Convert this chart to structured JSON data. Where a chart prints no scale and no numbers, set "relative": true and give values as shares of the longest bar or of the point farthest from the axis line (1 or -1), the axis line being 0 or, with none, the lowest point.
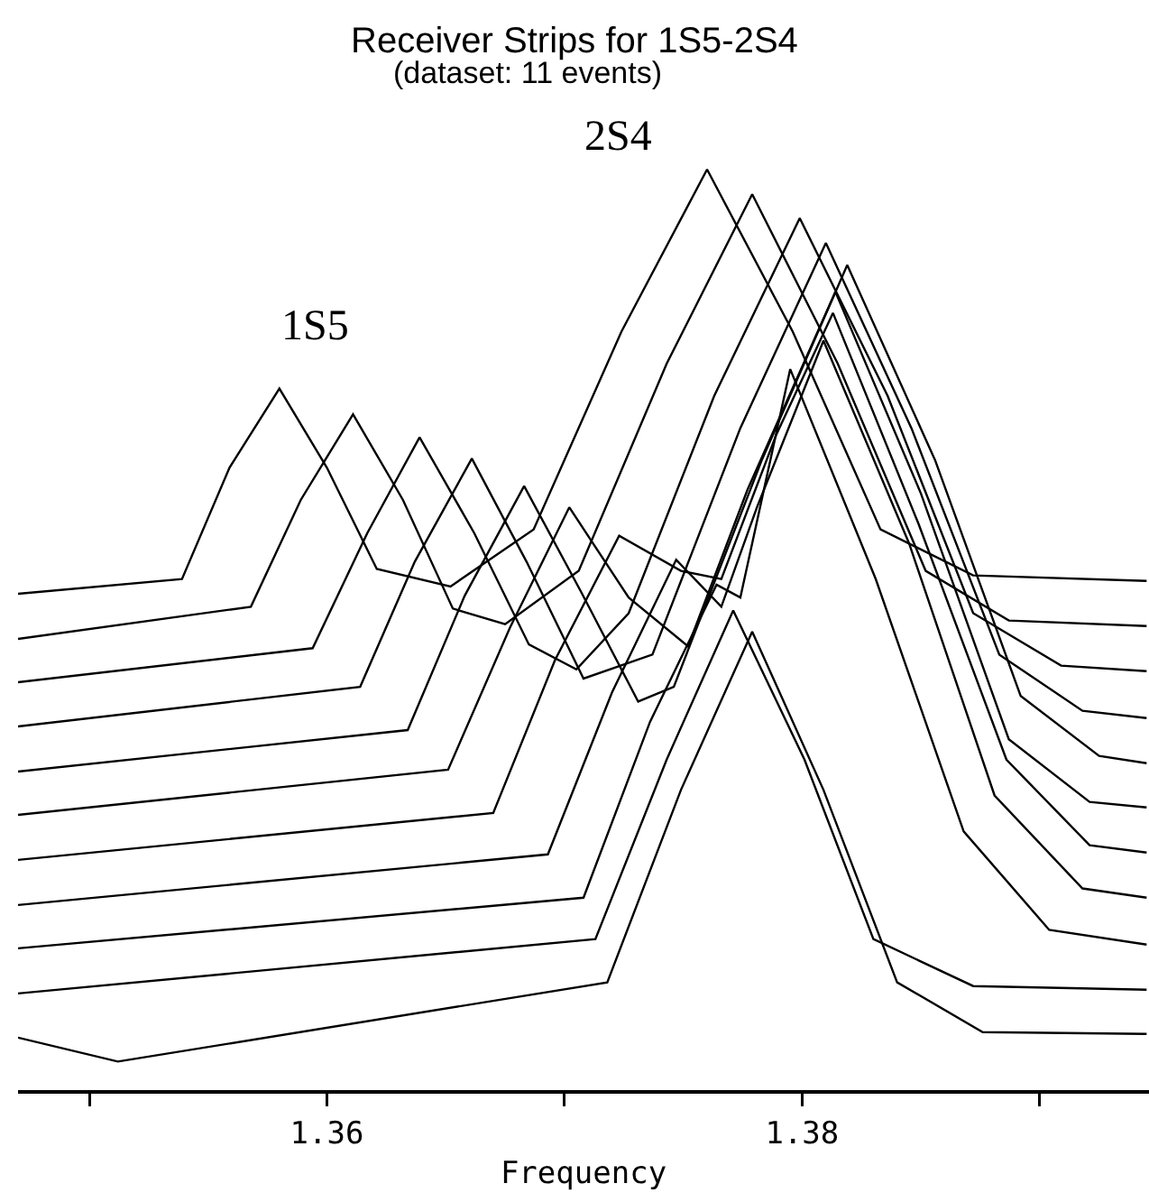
{
  "chart_data": {
    "type": "line",
    "title": "Receiver Strips for 1S5-2S4",
    "subtitle": "(dataset: 11 events)",
    "xlabel": "Frequency",
    "relative": true,
    "tick_labels": "x",
    "grid": false,
    "marker": "none",
    "line_style": "solid",
    "xlim": [
      1.347,
      1.3946
    ],
    "xticks": [
      {
        "value": 1.35,
        "label": null
      },
      1.36,
      {
        "value": 1.37,
        "label": null
      },
      1.38,
      {
        "value": 1.39,
        "label": null
      }
    ],
    "annotations": [
      "1S5",
      "2S4"
    ],
    "series": [
      {
        "color": "#000000",
        "x": [
          1.347,
          1.3539,
          1.3559,
          1.358,
          1.36,
          1.3621,
          1.3652,
          1.3687,
          1.3724,
          1.376,
          1.3796,
          1.3833,
          1.3872,
          1.3945
        ],
        "values": [
          0.539,
          0.555,
          0.676,
          0.762,
          0.676,
          0.566,
          0.547,
          0.609,
          0.824,
          1.0,
          0.824,
          0.609,
          0.559,
          0.553
        ]
      },
      {
        "color": "#000000",
        "x": [
          1.347,
          1.3568,
          1.3589,
          1.3611,
          1.3632,
          1.3653,
          1.3675,
          1.3706,
          1.3743,
          1.3779,
          1.3815,
          1.3852,
          1.3887,
          1.3945
        ],
        "values": [
          0.49,
          0.525,
          0.641,
          0.734,
          0.641,
          0.523,
          0.506,
          0.564,
          0.789,
          0.973,
          0.789,
          0.564,
          0.51,
          0.504
        ]
      },
      {
        "color": "#000000",
        "x": [
          1.347,
          1.3594,
          1.3617,
          1.3639,
          1.3662,
          1.3685,
          1.3705,
          1.3727,
          1.3763,
          1.3799,
          1.3836,
          1.3872,
          1.3909,
          1.3945
        ],
        "values": [
          0.443,
          0.48,
          0.605,
          0.709,
          0.605,
          0.484,
          0.457,
          0.518,
          0.754,
          0.947,
          0.754,
          0.518,
          0.461,
          0.455
        ]
      },
      {
        "color": "#000000",
        "x": [
          1.347,
          1.3614,
          1.3637,
          1.3661,
          1.3684,
          1.3708,
          1.3737,
          1.3774,
          1.381,
          1.3846,
          1.3883,
          1.3918,
          1.3945
        ],
        "values": [
          0.395,
          0.438,
          0.574,
          0.686,
          0.574,
          0.447,
          0.473,
          0.719,
          0.92,
          0.719,
          0.473,
          0.412,
          0.404
        ]
      },
      {
        "color": "#000000",
        "x": [
          1.347,
          1.3634,
          1.3658,
          1.3683,
          1.3707,
          1.3731,
          1.3746,
          1.3783,
          1.3819,
          1.3856,
          1.3892,
          1.3925,
          1.3945
        ],
        "values": [
          0.346,
          0.391,
          0.537,
          0.656,
          0.541,
          0.422,
          0.438,
          0.684,
          0.896,
          0.684,
          0.428,
          0.363,
          0.355
        ]
      },
      {
        "color": "#000000",
        "x": [
          1.347,
          1.3651,
          1.3677,
          1.3702,
          1.3727,
          1.3752,
          1.3777,
          1.3814,
          1.385,
          1.3887,
          1.3921,
          1.3945
        ],
        "values": [
          0.299,
          0.348,
          0.502,
          0.633,
          0.535,
          0.482,
          0.652,
          0.867,
          0.648,
          0.381,
          0.313,
          0.307
        ]
      },
      {
        "color": "#000000",
        "x": [
          1.347,
          1.367,
          1.3696,
          1.3723,
          1.3749,
          1.3766,
          1.3789,
          1.3813,
          1.3849,
          1.3886,
          1.3921,
          1.3945
        ],
        "values": [
          0.25,
          0.301,
          0.467,
          0.602,
          0.564,
          0.555,
          0.711,
          0.844,
          0.615,
          0.359,
          0.266,
          0.258
        ]
      },
      {
        "color": "#000000",
        "x": [
          1.347,
          1.3693,
          1.372,
          1.3747,
          1.3766,
          1.3781,
          1.3809,
          1.3845,
          1.3881,
          1.3918,
          1.3945
        ],
        "values": [
          0.201,
          0.256,
          0.432,
          0.576,
          0.525,
          0.633,
          0.814,
          0.594,
          0.32,
          0.219,
          0.209
        ]
      },
      {
        "color": "#000000",
        "x": [
          1.347,
          1.3708,
          1.3736,
          1.3764,
          1.3774,
          1.3795,
          1.3831,
          1.3868,
          1.3904,
          1.3945
        ],
        "values": [
          0.154,
          0.209,
          0.4,
          0.549,
          0.535,
          0.783,
          0.555,
          0.281,
          0.174,
          0.158
        ]
      },
      {
        "color": "#000000",
        "x": [
          1.347,
          1.3713,
          1.3743,
          1.3771,
          1.3801,
          1.383,
          1.3872,
          1.3945
        ],
        "values": [
          0.105,
          0.164,
          0.359,
          0.521,
          0.359,
          0.164,
          0.113,
          0.109
        ]
      },
      {
        "color": "#000000",
        "x": [
          1.347,
          1.3512,
          1.3718,
          1.3749,
          1.3779,
          1.3809,
          1.384,
          1.3876,
          1.3945
        ],
        "values": [
          0.057,
          0.031,
          0.117,
          0.326,
          0.498,
          0.326,
          0.117,
          0.063,
          0.061
        ]
      }
    ]
  }
}
